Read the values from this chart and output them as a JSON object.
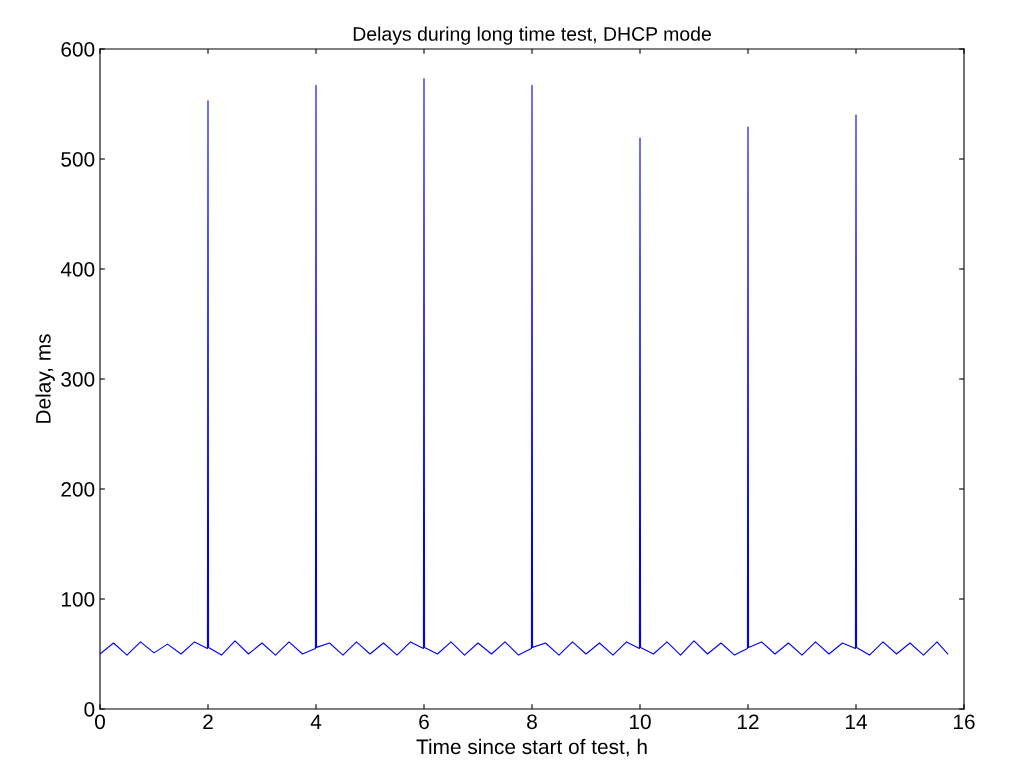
{
  "chart_data": {
    "type": "line",
    "title": "Delays during long time test, DHCP mode",
    "xlabel": "Time since start of test, h",
    "ylabel": "Delay, ms",
    "xlim": [
      0,
      16
    ],
    "xticks": [
      0,
      2,
      4,
      6,
      8,
      10,
      12,
      14,
      16
    ],
    "ylim": [
      0,
      600
    ],
    "yticks": [
      0,
      100,
      200,
      300,
      400,
      500,
      600
    ],
    "grid": false,
    "legend": false,
    "marker": "none",
    "line_style": "solid",
    "series": [
      {
        "color": "#0000ff",
        "x": [
          0,
          0.25,
          0.5,
          0.75,
          1,
          1.25,
          1.5,
          1.75,
          1.99,
          2,
          2.01,
          2.25,
          2.5,
          2.75,
          3,
          3.25,
          3.5,
          3.75,
          3.99,
          4,
          4.01,
          4.25,
          4.5,
          4.75,
          5,
          5.25,
          5.5,
          5.75,
          5.99,
          6,
          6.01,
          6.25,
          6.5,
          6.75,
          7,
          7.25,
          7.5,
          7.75,
          7.99,
          8,
          8.01,
          8.25,
          8.5,
          8.75,
          9,
          9.25,
          9.5,
          9.75,
          9.99,
          10,
          10.01,
          10.25,
          10.5,
          10.75,
          11,
          11.25,
          11.5,
          11.75,
          11.99,
          12,
          12.01,
          12.25,
          12.5,
          12.75,
          13,
          13.25,
          13.5,
          13.75,
          13.99,
          14,
          14.01,
          14.25,
          14.5,
          14.75,
          15,
          15.25,
          15.5,
          15.7
        ],
        "values": [
          50,
          60,
          49,
          61,
          51,
          59,
          50,
          61,
          55,
          553,
          56,
          49,
          62,
          50,
          60,
          49,
          61,
          50,
          55,
          567,
          56,
          60,
          49,
          61,
          50,
          60,
          49,
          61,
          55,
          573,
          56,
          50,
          61,
          49,
          60,
          50,
          61,
          49,
          55,
          567,
          56,
          60,
          49,
          61,
          50,
          60,
          49,
          61,
          55,
          519,
          56,
          50,
          61,
          49,
          62,
          50,
          60,
          49,
          55,
          529,
          56,
          61,
          50,
          60,
          49,
          61,
          50,
          60,
          55,
          540,
          56,
          49,
          61,
          50,
          60,
          49,
          61,
          50
        ]
      }
    ]
  }
}
